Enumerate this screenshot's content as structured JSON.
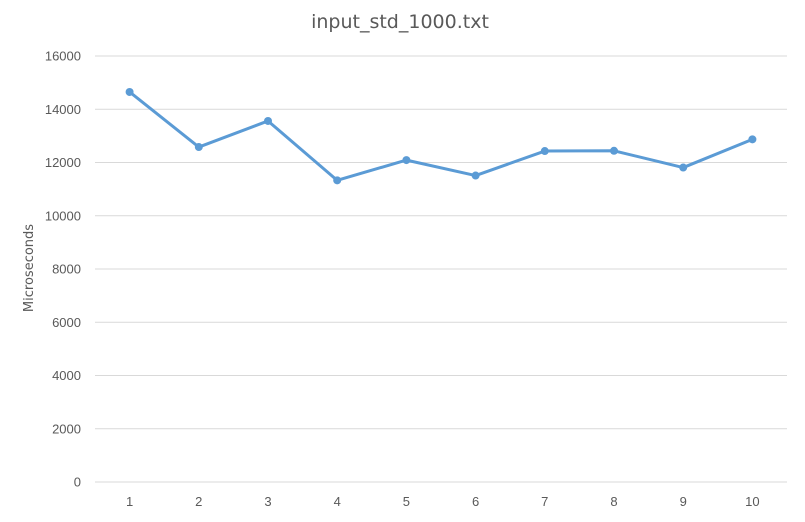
{
  "chart_data": {
    "type": "line",
    "title": "input_std_1000.txt",
    "xlabel": "",
    "ylabel": "Microseconds",
    "categories": [
      "1",
      "2",
      "3",
      "4",
      "5",
      "6",
      "7",
      "8",
      "9",
      "10"
    ],
    "series": [
      {
        "values": [
          14650,
          12580,
          13560,
          11330,
          12090,
          11510,
          12430,
          12440,
          11810,
          12870
        ],
        "color": "#5b9bd5"
      }
    ],
    "ylim": [
      0,
      16000
    ],
    "yticks": [
      0,
      2000,
      4000,
      6000,
      8000,
      10000,
      12000,
      14000,
      16000
    ],
    "grid": true,
    "legend": "none"
  }
}
